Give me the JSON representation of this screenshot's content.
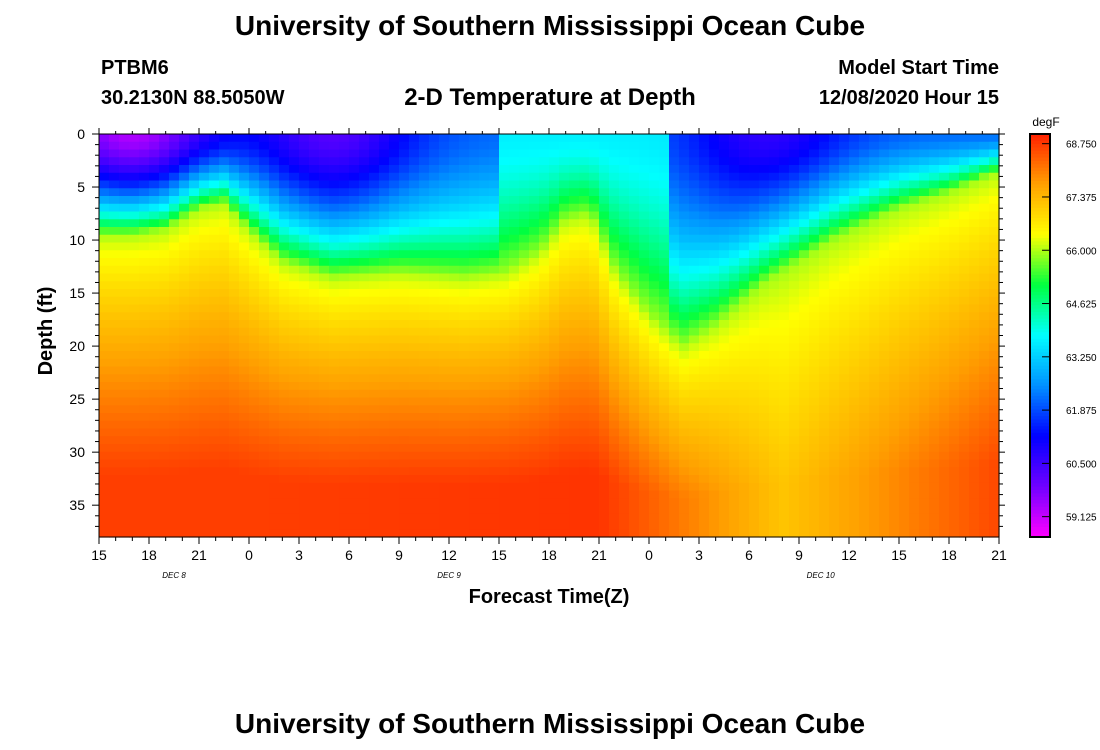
{
  "header": {
    "title": "University of Southern Mississippi Ocean Cube",
    "station": "PTBM6",
    "coords": "30.2130N 88.5050W",
    "plot_title": "2-D Temperature at Depth",
    "model_start_label": "Model Start Time",
    "model_start_value": "12/08/2020 Hour 15"
  },
  "footer": {
    "title": "University of Southern Mississippi Ocean Cube"
  },
  "chart_data": {
    "type": "heatmap",
    "title": "2-D Temperature at Depth",
    "xlabel": "Forecast Time(Z)",
    "ylabel": "Depth (ft)",
    "x_tick_labels": [
      "15",
      "18",
      "21",
      "0",
      "3",
      "6",
      "9",
      "12",
      "15",
      "18",
      "21",
      "0",
      "3",
      "6",
      "9",
      "12",
      "15",
      "18",
      "21"
    ],
    "x_range_hours": [
      0,
      54
    ],
    "date_labels": [
      {
        "text": "DEC 8",
        "hour": 4.5
      },
      {
        "text": "DEC 9",
        "hour": 21
      },
      {
        "text": "DEC 10",
        "hour": 43.3
      }
    ],
    "y_ticks": [
      0,
      5,
      10,
      15,
      20,
      25,
      30,
      35
    ],
    "ylim": [
      0,
      38
    ],
    "colorbar": {
      "unit": "degF",
      "ticks": [
        "59.125",
        "60.500",
        "61.875",
        "63.250",
        "64.625",
        "66.000",
        "67.375",
        "68.750"
      ],
      "min": 58.6,
      "max": 69.0,
      "colors": [
        "#ff00ff",
        "#7000ff",
        "#0000ff",
        "#0090ff",
        "#00ffff",
        "#00ff40",
        "#ffff00",
        "#ffa000",
        "#ff2000"
      ]
    },
    "thermocline_keypoints": {
      "hours": [
        0,
        2,
        4,
        6,
        7.5,
        9,
        11,
        14,
        18,
        22,
        24.5,
        26.5,
        28,
        29.5,
        31,
        33,
        35,
        37,
        40,
        44,
        48,
        51,
        54
      ],
      "depth_ft": [
        9.5,
        9.5,
        9,
        7,
        6.5,
        9,
        12,
        13.5,
        13,
        13.5,
        13,
        11,
        8,
        7.5,
        13,
        17,
        20,
        18,
        14,
        10,
        7,
        5.5,
        3.5
      ]
    },
    "surface_min_degF": [
      {
        "hour": 2,
        "depth_ft": 0.5,
        "value": 59.0
      },
      {
        "hour": 14,
        "depth_ft": 2,
        "value": 60.0
      },
      {
        "hour": 40,
        "depth_ft": 2,
        "value": 60.5
      }
    ],
    "bottom_max_degF": [
      {
        "hour": 10,
        "value": 68.7
      },
      {
        "hour": 30,
        "value": 68.8
      },
      {
        "hour": 41,
        "value": 67.2
      },
      {
        "hour": 54,
        "value": 68.6
      }
    ]
  }
}
